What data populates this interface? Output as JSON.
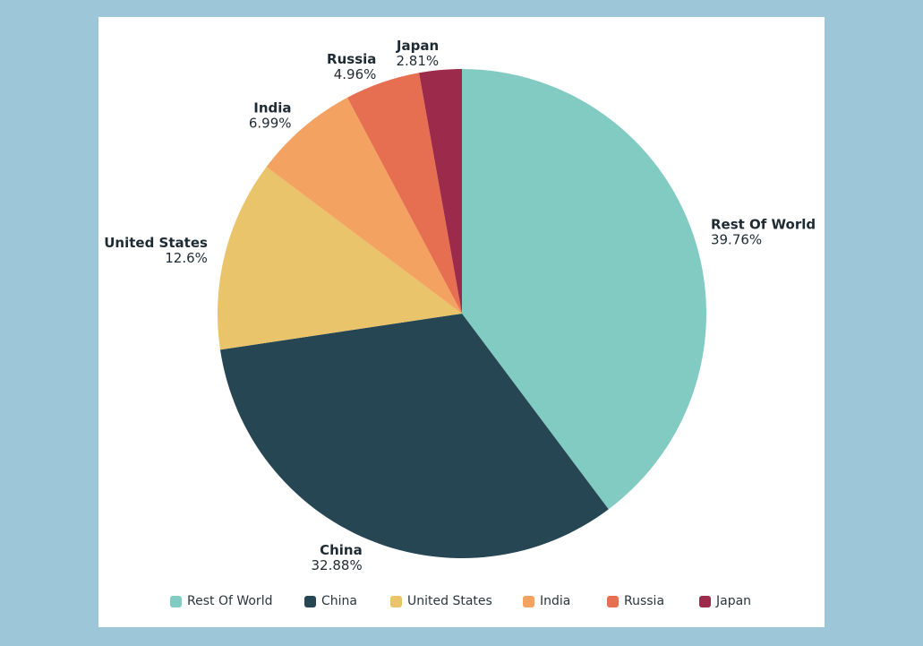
{
  "chart_data": {
    "type": "pie",
    "categories": [
      "Rest Of World",
      "China",
      "United States",
      "India",
      "Russia",
      "Japan"
    ],
    "values": [
      39.76,
      32.88,
      12.6,
      6.99,
      4.96,
      2.81
    ],
    "value_labels": [
      "39.76%",
      "32.88%",
      "12.6%",
      "6.99%",
      "4.96%",
      "2.81%"
    ],
    "colors": [
      "#82cbc3",
      "#264653",
      "#e9c46a",
      "#f4a261",
      "#e76f51",
      "#9c2a4b"
    ],
    "start_angle": "12 o'clock",
    "direction": "clockwise",
    "legend_position": "bottom"
  }
}
